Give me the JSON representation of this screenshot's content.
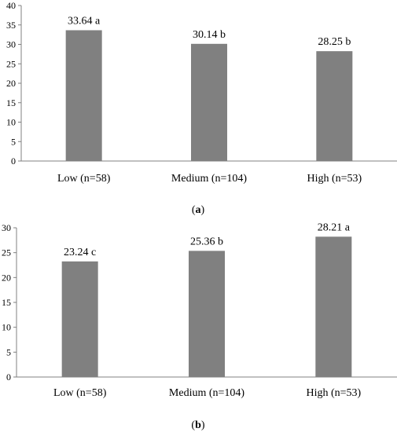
{
  "colors": {
    "bar": "#808080",
    "axis": "#808080",
    "text": "#000000",
    "background": "#ffffff"
  },
  "chart_data": [
    {
      "type": "bar",
      "caption": {
        "open": "(",
        "letter": "a",
        "close": ")"
      },
      "categories": [
        "Low (n=58)",
        "Medium (n=104)",
        "High (n=53)"
      ],
      "values": [
        33.64,
        30.14,
        28.25
      ],
      "data_labels": [
        "33.64 a",
        "30.14 b",
        "28.25 b"
      ],
      "ylim": [
        0,
        40
      ],
      "yticks": [
        0,
        5,
        10,
        15,
        20,
        25,
        30,
        35,
        40
      ],
      "title": "",
      "xlabel": "",
      "ylabel": "",
      "grid": false,
      "legend": "none"
    },
    {
      "type": "bar",
      "caption": {
        "open": "(",
        "letter": "b",
        "close": ")"
      },
      "categories": [
        "Low (n=58)",
        "Medium (n=104)",
        "High (n=53)"
      ],
      "values": [
        23.24,
        25.36,
        28.21
      ],
      "data_labels": [
        "23.24 c",
        "25.36 b",
        "28.21 a"
      ],
      "ylim": [
        0,
        30
      ],
      "yticks": [
        0,
        5,
        10,
        15,
        20,
        25,
        30
      ],
      "title": "",
      "xlabel": "",
      "ylabel": "",
      "grid": false,
      "legend": "none"
    }
  ]
}
